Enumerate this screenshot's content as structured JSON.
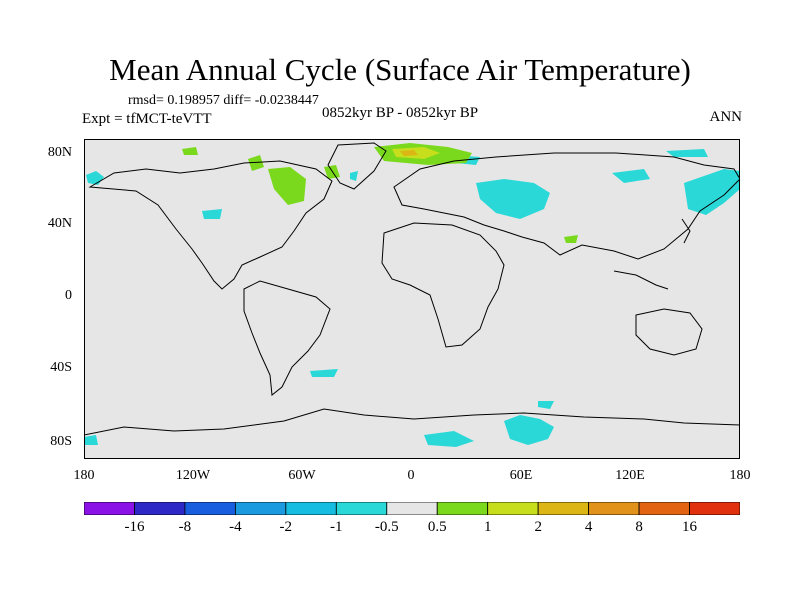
{
  "title": "Mean Annual Cycle (Surface Air Temperature)",
  "stats": "rmsd= 0.198957 diff= -0.0238447",
  "experiment": "Expt = tfMCT-teVTT",
  "period": "0852kyr BP - 0852kyr BP",
  "season": "ANN",
  "lat_labels": [
    "80N",
    "40N",
    "0",
    "40S",
    "80S"
  ],
  "lon_labels": [
    "180",
    "120W",
    "60W",
    "0",
    "60E",
    "120E",
    "180"
  ],
  "colorbar": {
    "labels": [
      "-16",
      "-8",
      "-4",
      "-2",
      "-1",
      "-0.5",
      "0.5",
      "1",
      "2",
      "4",
      "8",
      "16"
    ],
    "colors": [
      "#8a12e6",
      "#2e28c6",
      "#1a5ee0",
      "#1b9ae0",
      "#17bde0",
      "#2ad8d8",
      "#e6e6e6",
      "#7ad91c",
      "#c6de1c",
      "#dcb614",
      "#e0921a",
      "#e26412",
      "#e0300e"
    ]
  },
  "colors": {
    "land_bg": "#e6e6e6",
    "cyan": "#2ad8d8",
    "green": "#7ad91c",
    "yellow": "#c6de1c",
    "orange": "#dcb614"
  }
}
